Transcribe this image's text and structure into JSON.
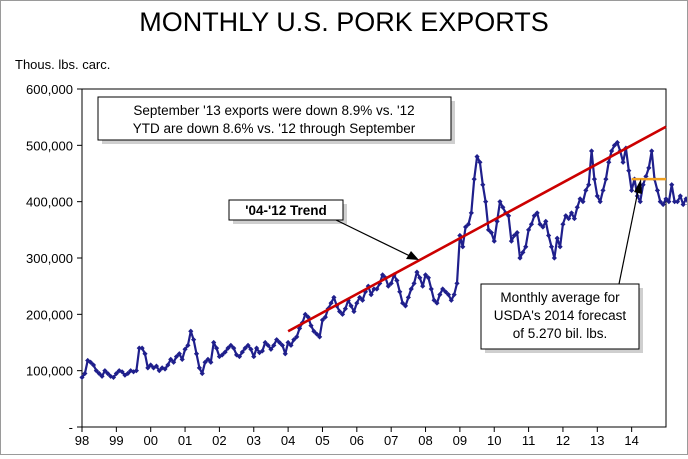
{
  "chart_data": {
    "type": "line",
    "title": "MONTHLY U.S. PORK EXPORTS",
    "ylabel": "Thous. lbs. carc.",
    "ylim": [
      0,
      600000
    ],
    "y_ticks": [
      "-",
      "100,000",
      "200,000",
      "300,000",
      "400,000",
      "500,000",
      "600,000"
    ],
    "x_ticks": [
      "98",
      "99",
      "00",
      "01",
      "02",
      "03",
      "04",
      "05",
      "06",
      "07",
      "08",
      "09",
      "10",
      "11",
      "12",
      "13",
      "14"
    ],
    "x_range": [
      1998.0,
      2015.0
    ],
    "grid": false,
    "series": [
      {
        "type": "line-markers",
        "color": "#1f1f8c",
        "x_start": 1998.0,
        "x_step": 0.0833333,
        "values": [
          88000,
          95000,
          118000,
          115000,
          110000,
          100000,
          95000,
          90000,
          100000,
          95000,
          90000,
          88000,
          95000,
          100000,
          98000,
          92000,
          95000,
          100000,
          98000,
          100000,
          140000,
          140000,
          130000,
          105000,
          110000,
          105000,
          108000,
          100000,
          105000,
          103000,
          110000,
          120000,
          115000,
          125000,
          130000,
          120000,
          138000,
          145000,
          170000,
          155000,
          130000,
          105000,
          95000,
          115000,
          120000,
          115000,
          150000,
          140000,
          125000,
          128000,
          133000,
          140000,
          145000,
          140000,
          128000,
          125000,
          133000,
          140000,
          145000,
          138000,
          125000,
          140000,
          132000,
          135000,
          150000,
          145000,
          138000,
          145000,
          155000,
          150000,
          145000,
          130000,
          150000,
          145000,
          155000,
          160000,
          175000,
          185000,
          200000,
          195000,
          180000,
          170000,
          165000,
          160000,
          190000,
          195000,
          210000,
          220000,
          230000,
          215000,
          205000,
          200000,
          210000,
          225000,
          215000,
          205000,
          220000,
          230000,
          225000,
          240000,
          250000,
          235000,
          245000,
          245000,
          255000,
          270000,
          265000,
          250000,
          255000,
          270000,
          260000,
          240000,
          220000,
          215000,
          230000,
          245000,
          255000,
          275000,
          265000,
          250000,
          270000,
          265000,
          245000,
          225000,
          220000,
          235000,
          245000,
          240000,
          235000,
          225000,
          235000,
          255000,
          340000,
          320000,
          355000,
          360000,
          380000,
          440000,
          480000,
          470000,
          430000,
          400000,
          350000,
          345000,
          330000,
          365000,
          400000,
          390000,
          380000,
          375000,
          330000,
          340000,
          345000,
          300000,
          310000,
          320000,
          350000,
          360000,
          375000,
          380000,
          360000,
          355000,
          365000,
          340000,
          320000,
          300000,
          335000,
          320000,
          360000,
          375000,
          370000,
          380000,
          370000,
          390000,
          405000,
          400000,
          420000,
          430000,
          490000,
          440000,
          410000,
          400000,
          420000,
          440000,
          470000,
          490000,
          500000,
          505000,
          490000,
          470000,
          495000,
          455000,
          420000,
          440000,
          410000,
          400000,
          430000,
          445000,
          460000,
          490000,
          440000,
          420000,
          400000,
          395000,
          405000,
          400000,
          430000,
          400000,
          400000,
          410000,
          395000,
          405000,
          395000
        ]
      },
      {
        "name": "'04-'12 Trend",
        "type": "trend-line",
        "color": "#cc0000",
        "x": [
          2004.0,
          2015.0
        ],
        "y": [
          170000,
          533000
        ]
      },
      {
        "name": "Monthly average for USDA's 2014 forecast of 5.270 bil. lbs.",
        "type": "forecast-line",
        "color": "#f0a020",
        "x": [
          2014.0,
          2015.0
        ],
        "y": [
          440000,
          440000
        ]
      }
    ],
    "annotations": {
      "box_line1": "September '13 exports were down 8.9% vs. '12",
      "box_line2": "YTD are down 8.6% vs. '12 through September",
      "trend_label": "'04-'12 Trend",
      "forecast_line1": "Monthly average for",
      "forecast_line2": "USDA's 2014 forecast",
      "forecast_line3": "of 5.270 bil. lbs."
    }
  }
}
